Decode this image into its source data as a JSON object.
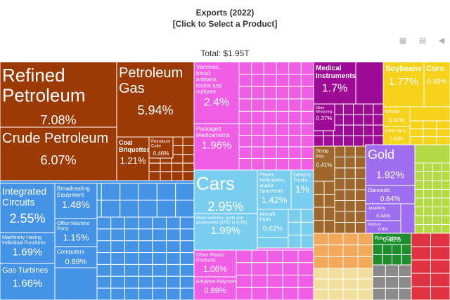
{
  "header": {
    "title": "Exports (2022)",
    "subtitle": "[Click to Select a Product]",
    "total": "Total: $1.95T"
  },
  "toolbar": {
    "table_icon": "table-icon",
    "chart_icon": "line-chart-icon",
    "share_icon": "share-icon"
  },
  "chart_data": {
    "type": "treemap",
    "total": "$1.95T",
    "labeled_items": [
      {
        "name": "Refined Petroleum",
        "share": 7.08,
        "color": "#9c3a06"
      },
      {
        "name": "Crude Petroleum",
        "share": 6.07,
        "color": "#9c3a06"
      },
      {
        "name": "Petroleum Gas",
        "share": 5.94,
        "color": "#9c3a06"
      },
      {
        "name": "Coal Briquettes",
        "share": 1.21,
        "color": "#9c3a06"
      },
      {
        "name": "Petroleum Coke",
        "share": 0.46,
        "color": "#9c3a06"
      },
      {
        "name": "Integrated Circuits",
        "share": 2.55,
        "color": "#4593e6"
      },
      {
        "name": "Broadcasting Equipment",
        "share": 1.48,
        "color": "#4593e6"
      },
      {
        "name": "Office Machine Parts",
        "share": 1.15,
        "color": "#4593e6"
      },
      {
        "name": "Machinery Having Individual Functions",
        "share": 1.69,
        "color": "#4593e6"
      },
      {
        "name": "Computers",
        "share": 0.89,
        "color": "#4593e6"
      },
      {
        "name": "Gas Turbines",
        "share": 1.66,
        "color": "#4593e6"
      },
      {
        "name": "Vaccines, blood, antisera, toxins and cultures",
        "share": 2.4,
        "color": "#f05ee5"
      },
      {
        "name": "Packaged Medicaments",
        "share": 1.96,
        "color": "#f05ee5"
      },
      {
        "name": "Other Plastic Products",
        "share": 1.06,
        "color": "#f05ee5"
      },
      {
        "name": "Ethylene Polymers",
        "share": 0.89,
        "color": "#f05ee5"
      },
      {
        "name": "Medical Instruments",
        "share": 1.7,
        "color": "#9e0b96"
      },
      {
        "name": "Other Measuring Instruments",
        "share": 0.37,
        "color": "#9e0b96"
      },
      {
        "name": "Cars",
        "share": 2.95,
        "color": "#79cdee"
      },
      {
        "name": "Motor vehicles; parts and accessories (8701 to 8705)",
        "share": 1.99,
        "color": "#79cdee"
      },
      {
        "name": "Planes, Helicopters, and/or Spacecraft",
        "share": 1.42,
        "color": "#79cdee"
      },
      {
        "name": "Delivery Trucks",
        "share": 1.0,
        "color": "#79cdee"
      },
      {
        "name": "Aircraft Parts",
        "share": 0.62,
        "color": "#79cdee"
      },
      {
        "name": "Soybeans",
        "share": 1.77,
        "color": "#f6d21b"
      },
      {
        "name": "Corn",
        "share": 0.99,
        "color": "#f6d21b"
      },
      {
        "name": "Wheat",
        "share": 0.47,
        "color": "#f6d21b"
      },
      {
        "name": "Other Nuts",
        "share": 0.43,
        "color": "#f6d21b"
      },
      {
        "name": "Gold",
        "share": 1.92,
        "color": "#9e6df0"
      },
      {
        "name": "Diamonds",
        "share": 0.64,
        "color": "#9e6df0"
      },
      {
        "name": "Jewellery",
        "share": 0.44,
        "color": "#9e6df0"
      },
      {
        "name": "Platinum",
        "share": 0.4,
        "color": "#9e6df0"
      },
      {
        "name": "Scrap Iron",
        "share": 0.41,
        "color": "#a0672c"
      },
      {
        "name": "Raw Cotton",
        "share": 0.46,
        "color": "#1d8e2c"
      }
    ]
  }
}
